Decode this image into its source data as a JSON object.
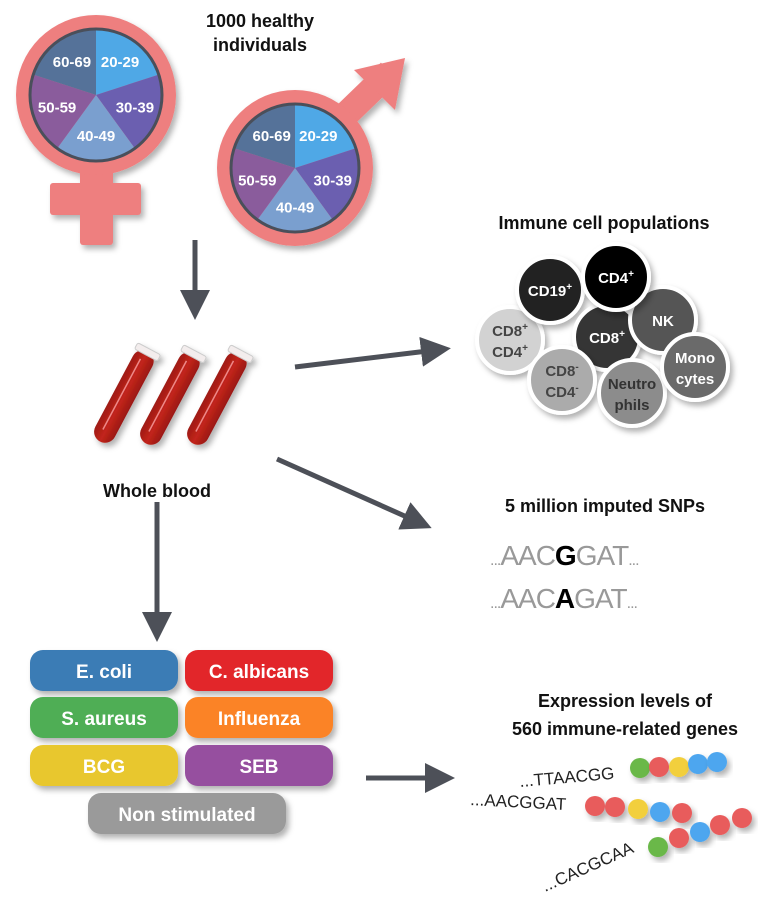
{
  "cohort": {
    "title_line1": "1000 healthy",
    "title_line2": "individuals",
    "age_groups": [
      "20-29",
      "30-39",
      "40-49",
      "50-59",
      "60-69"
    ],
    "age_colors": [
      "#4fa8e6",
      "#6b5fb0",
      "#7a9fcf",
      "#8a5c9c",
      "#557299"
    ],
    "symbol_color": "#ee7f7f",
    "female_icon": "female-symbol-icon",
    "male_icon": "male-symbol-icon"
  },
  "sample": {
    "label": "Whole blood",
    "icon": "blood-tubes-icon"
  },
  "immune_cells": {
    "title": "Immune cell populations",
    "cells": [
      {
        "label1": "CD8",
        "sup1": "+",
        "label2": "CD4",
        "sup2": "+",
        "fill": "#d2d2d2",
        "text": "#444"
      },
      {
        "label1": "CD19",
        "sup1": "+",
        "fill": "#232323",
        "text": "#fff"
      },
      {
        "label1": "CD8",
        "sup1": "+",
        "fill": "#343434",
        "text": "#fff"
      },
      {
        "label1": "NK",
        "fill": "#555555",
        "text": "#fff"
      },
      {
        "label1": "CD4",
        "sup1": "+",
        "fill": "#050505",
        "text": "#fff"
      },
      {
        "label1": "CD8",
        "sup1": "-",
        "label2": "CD4",
        "sup2": "-",
        "fill": "#ababab",
        "text": "#444"
      },
      {
        "label1": "Neutro",
        "label2": "phils",
        "fill": "#8c8c8c",
        "text": "#333"
      },
      {
        "label1": "Mono",
        "label2": "cytes",
        "fill": "#6b6b6b",
        "text": "#fff"
      }
    ]
  },
  "snps": {
    "title": "5 million imputed SNPs",
    "seq1": {
      "prefix": "...",
      "before": "AAC",
      "variant": "G",
      "after": "GAT",
      "suffix": "..."
    },
    "seq2": {
      "prefix": "...",
      "before": "AAC",
      "variant": "A",
      "after": "GAT",
      "suffix": "..."
    }
  },
  "stimuli": [
    {
      "label": "E. coli",
      "color": "#3a7bb5"
    },
    {
      "label": "C. albicans",
      "color": "#e2262c"
    },
    {
      "label": "S. aureus",
      "color": "#4fae54"
    },
    {
      "label": "Influenza",
      "color": "#fb8325"
    },
    {
      "label": "BCG",
      "color": "#e8c72e"
    },
    {
      "label": "SEB",
      "color": "#964f9f"
    },
    {
      "label": "Non stimulated",
      "color": "#9a9a9a"
    }
  ],
  "expression": {
    "title_line1": "Expression levels of",
    "title_line2": "560 immune-related genes",
    "rows": [
      {
        "seq": "...TTAACGG",
        "dots": [
          "#6ab84a",
          "#e85c5c",
          "#f2cf3c",
          "#4ea6ef",
          "#4ea6ef"
        ]
      },
      {
        "seq": "...AACGGAT",
        "dots": [
          "#e85c5c",
          "#e85c5c",
          "#f2cf3c",
          "#4ea6ef",
          "#e85c5c"
        ]
      },
      {
        "seq": "...CACGCAA",
        "dots": [
          "#6ab84a",
          "#e85c5c",
          "#4ea6ef",
          "#e85c5c",
          "#e85c5c"
        ]
      }
    ]
  },
  "arrow_color": "#4d5058"
}
